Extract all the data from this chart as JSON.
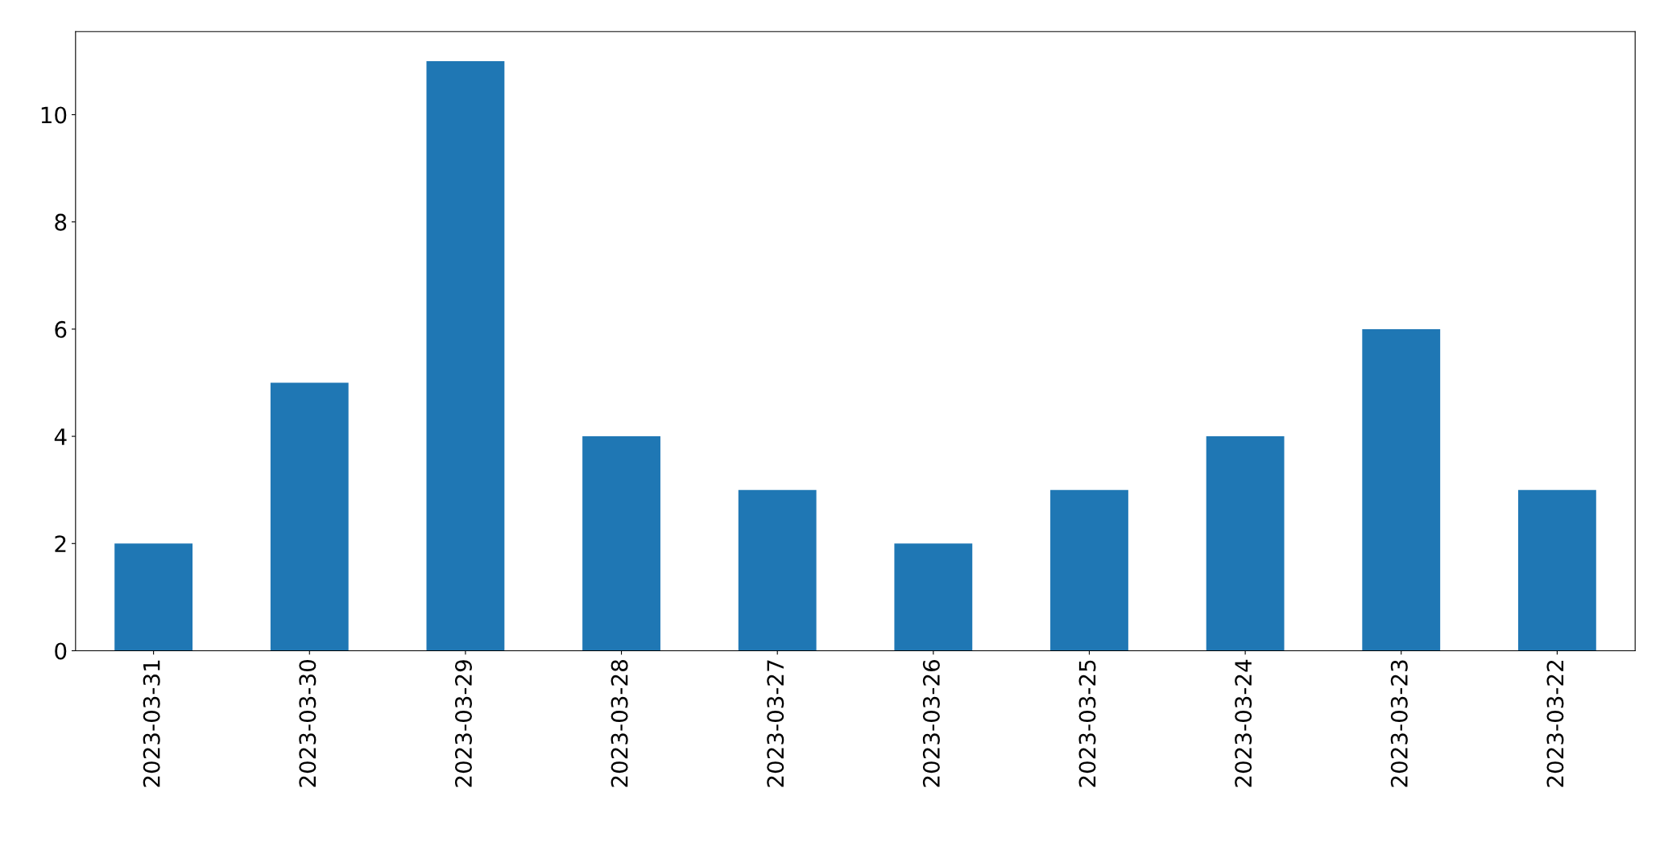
{
  "chart_data": {
    "type": "bar",
    "categories": [
      "2023-03-31",
      "2023-03-30",
      "2023-03-29",
      "2023-03-28",
      "2023-03-27",
      "2023-03-26",
      "2023-03-25",
      "2023-03-24",
      "2023-03-23",
      "2023-03-22"
    ],
    "values": [
      2,
      5,
      11,
      4,
      3,
      2,
      3,
      4,
      6,
      3
    ],
    "color": "#1f77b4",
    "ylim": [
      0,
      11.55
    ],
    "yticks": [
      0,
      2,
      4,
      6,
      8,
      10
    ],
    "grid": false,
    "legend": false
  }
}
